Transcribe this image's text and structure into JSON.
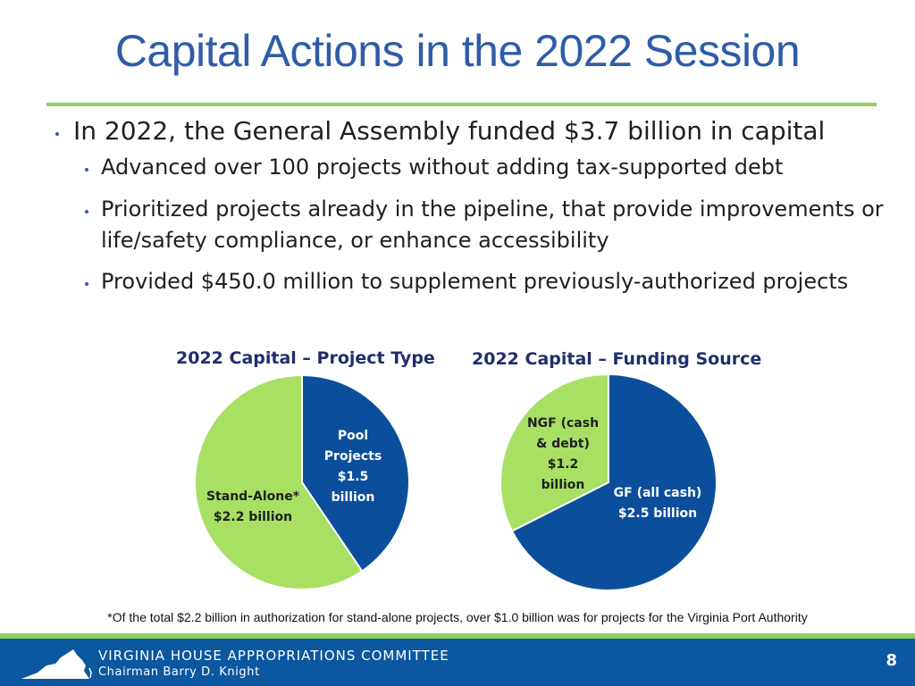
{
  "slide": {
    "title": "Capital Actions in the 2022 Session",
    "bullet_main": "In 2022, the General Assembly funded $3.7 billion in capital",
    "sub_bullets": [
      "Advanced over 100 projects without adding tax-supported debt",
      "Prioritized projects already in the pipeline, that provide improvements or life/safety compliance, or enhance accessibility",
      "Provided $450.0 million to supplement previously-authorized projects"
    ],
    "footnote": "*Of the total $2.2 billion in authorization for stand-alone projects, over $1.0 billion was for projects for the Virginia Port Authority",
    "page_number": "8"
  },
  "footer": {
    "organization": "VIRGINIA HOUSE APPROPRIATIONS COMMITTEE",
    "chairman": "Chairman Barry D. Knight",
    "logo_icon": "virginia-state-icon"
  },
  "colors": {
    "title": "#2f5ca8",
    "accent_green": "#8fd15a",
    "chart_blue": "#0b4f9c",
    "chart_green": "#a8e063",
    "footer_blue": "#0b57a0"
  },
  "chart_data": [
    {
      "type": "pie",
      "title": "2022 Capital – Project Type",
      "slices": [
        {
          "name": "Pool Projects",
          "value": 1.5,
          "label": "Pool Projects $1.5 billion",
          "color": "#0b4f9c"
        },
        {
          "name": "Stand-Alone*",
          "value": 2.2,
          "label": "Stand-Alone* $2.2 billion",
          "color": "#a8e063"
        }
      ]
    },
    {
      "type": "pie",
      "title": "2022 Capital – Funding Source",
      "slices": [
        {
          "name": "GF (all cash)",
          "value": 2.5,
          "label": "GF (all cash) $2.5 billion",
          "color": "#0b4f9c"
        },
        {
          "name": "NGF (cash & debt)",
          "value": 1.2,
          "label": "NGF (cash & debt) $1.2 billion",
          "color": "#a8e063"
        }
      ]
    }
  ],
  "labels": {
    "pool": [
      "Pool",
      "Projects",
      "$1.5",
      "billion"
    ],
    "standalone": [
      "Stand-Alone*",
      "$2.2 billion"
    ],
    "ngf": [
      "NGF (cash",
      "& debt)",
      "$1.2",
      "billion"
    ],
    "gf": [
      "GF (all cash)",
      "$2.5 billion"
    ]
  }
}
